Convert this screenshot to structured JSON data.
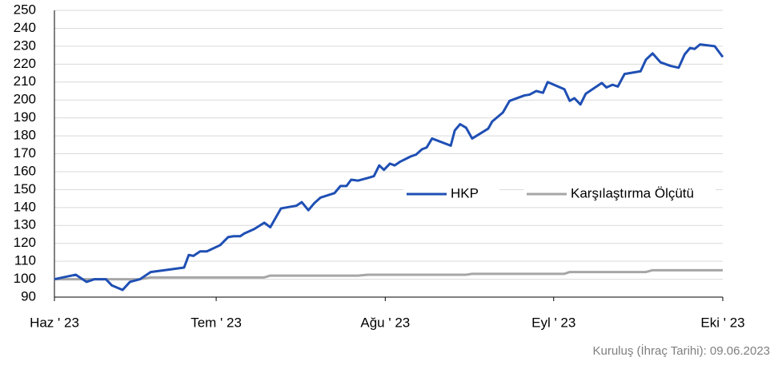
{
  "chart_data": {
    "type": "line",
    "x": [
      0,
      3.2,
      4.8,
      6,
      7.7,
      8.6,
      10.2,
      11.3,
      12.8,
      14.4,
      19.4,
      20.1,
      20.8,
      21.8,
      22.8,
      24.8,
      26,
      26.8,
      27.8,
      28.4,
      29.9,
      31.4,
      32.3,
      33.9,
      36.2,
      37,
      38,
      38.9,
      39.8,
      41.9,
      42.8,
      43.7,
      44.4,
      45.4,
      46.9,
      47.8,
      48.6,
      49.3,
      50.2,
      50.9,
      51.7,
      53.3,
      54.1,
      55,
      55.7,
      56.5,
      59.3,
      59.9,
      60.7,
      61.6,
      62.5,
      64.9,
      65.5,
      67.1,
      68.1,
      70.3,
      71.1,
      72.1,
      73.1,
      73.8,
      76.3,
      77.1,
      77.8,
      78.7,
      79.5,
      81.9,
      82.6,
      83.5,
      84.3,
      85.3,
      87.7,
      88.5,
      89.5,
      90.7,
      92.2,
      93.4,
      94.3,
      95.1,
      95.8,
      96.6,
      98.8,
      100
    ],
    "series": [
      {
        "name": "HKP",
        "color": "#1f4fb4",
        "values": [
          100,
          102.5,
          98.5,
          100,
          100,
          96.5,
          94,
          98.5,
          100,
          104,
          106.5,
          113.5,
          113,
          115.5,
          115.5,
          119,
          123.5,
          124,
          124,
          125.5,
          128,
          131.5,
          129,
          139.5,
          141,
          143,
          138.5,
          142.5,
          145.5,
          148,
          152,
          152,
          155.5,
          155,
          156.5,
          157.5,
          163.5,
          161,
          164.5,
          163.5,
          165.5,
          168.5,
          169.5,
          172.5,
          173.5,
          178.5,
          174.5,
          183,
          186.5,
          184.5,
          178.5,
          184,
          188,
          193,
          199.5,
          202.5,
          203,
          205,
          204,
          210,
          206,
          199.5,
          201,
          197.5,
          203.5,
          209.5,
          207,
          208.5,
          207.5,
          214.5,
          216,
          222.5,
          226,
          221,
          219,
          218,
          225.5,
          229,
          228.5,
          231,
          230,
          224
        ]
      },
      {
        "name": "Karşılaştırma Ölçütü",
        "color": "#a6a6a6",
        "values": [
          100,
          100,
          100,
          100,
          100,
          100,
          100,
          100,
          100,
          101,
          101,
          101,
          101,
          101,
          101,
          101,
          101,
          101,
          101,
          101,
          101,
          101,
          102,
          102,
          102,
          102,
          102,
          102,
          102,
          102,
          102,
          102,
          102,
          102,
          102.5,
          102.5,
          102.5,
          102.5,
          102.5,
          102.5,
          102.5,
          102.5,
          102.5,
          102.5,
          102.5,
          102.5,
          102.5,
          102.5,
          102.5,
          102.5,
          103,
          103,
          103,
          103,
          103,
          103,
          103,
          103,
          103,
          103,
          103,
          104,
          104,
          104,
          104,
          104,
          104,
          104,
          104,
          104,
          104,
          104,
          105,
          105,
          105,
          105,
          105,
          105,
          105,
          105,
          105,
          105
        ]
      }
    ],
    "xlim": [
      0,
      100
    ],
    "xticks": [
      {
        "value": 0,
        "label": "Haz ' 23"
      },
      {
        "value": 24.2,
        "label": "Tem ' 23"
      },
      {
        "value": 49.5,
        "label": "Ağu ' 23"
      },
      {
        "value": 74.7,
        "label": "Eyl ' 23"
      },
      {
        "value": 100,
        "label": "Eki ' 23"
      }
    ],
    "ylim": [
      90,
      250
    ],
    "yticks": [
      90,
      100,
      110,
      120,
      130,
      140,
      150,
      160,
      170,
      180,
      190,
      200,
      210,
      220,
      230,
      240,
      250
    ],
    "grid": true,
    "note": "Kuruluş (İhraç Tarihi): 09.06.2023"
  }
}
